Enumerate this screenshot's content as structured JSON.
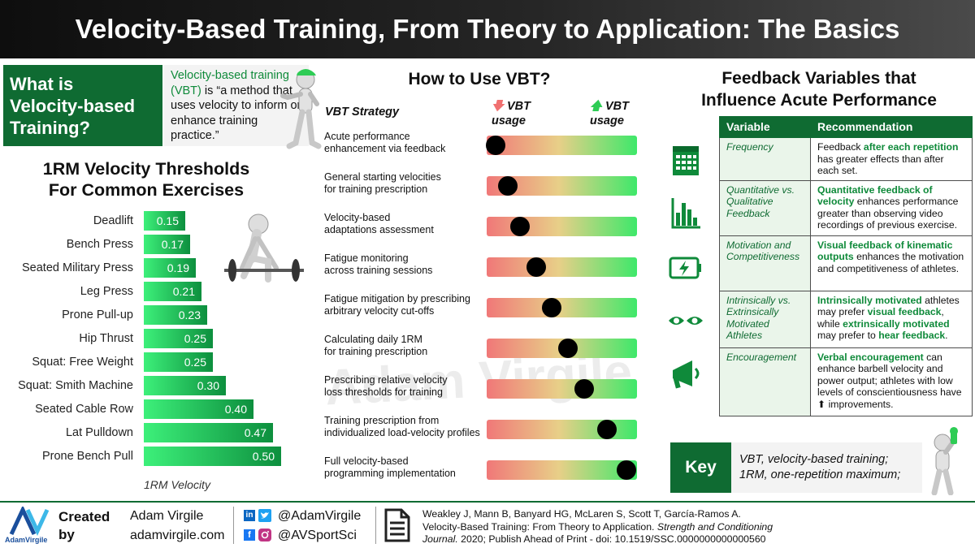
{
  "title": "Velocity-Based Training, From Theory to Application: The Basics",
  "intro": {
    "heading_line1": "What is",
    "heading_line2": "Velocity-based",
    "heading_line3": "Training?",
    "def_green": "Velocity-based training (VBT)",
    "def_rest": " is “a method that uses velocity to inform or enhance training practice.”"
  },
  "thresholds": {
    "title_line1": "1RM Velocity Thresholds",
    "title_line2": "For Common Exercises",
    "axis_label": "1RM Velocity",
    "exercises": [
      {
        "name": "Deadlift",
        "value": "0.15"
      },
      {
        "name": "Bench Press",
        "value": "0.17"
      },
      {
        "name": "Seated Military Press",
        "value": "0.19"
      },
      {
        "name": "Leg Press",
        "value": "0.21"
      },
      {
        "name": "Prone Pull-up",
        "value": "0.23"
      },
      {
        "name": "Hip Thrust",
        "value": "0.25"
      },
      {
        "name": "Squat: Free Weight",
        "value": "0.25"
      },
      {
        "name": "Squat: Smith Machine",
        "value": "0.30"
      },
      {
        "name": "Seated Cable Row",
        "value": "0.40"
      },
      {
        "name": "Lat Pulldown",
        "value": "0.47"
      },
      {
        "name": "Prone Bench Pull",
        "value": "0.50"
      }
    ]
  },
  "how": {
    "title": "How to Use VBT?",
    "col_strategy": "VBT Strategy",
    "col_low": "VBT usage",
    "col_high": "VBT usage",
    "strategies": [
      {
        "l1": "Acute performance",
        "l2": "enhancement via feedback",
        "level": 0.06
      },
      {
        "l1": "General starting velocities",
        "l2": "for training prescription",
        "level": 0.14
      },
      {
        "l1": "Velocity-based",
        "l2": "adaptations assessment",
        "level": 0.22
      },
      {
        "l1": "Fatigue monitoring",
        "l2": "across training sessions",
        "level": 0.33
      },
      {
        "l1": "Fatigue mitigation by prescribing",
        "l2": "arbitrary velocity cut-offs",
        "level": 0.43
      },
      {
        "l1": "Calculating daily 1RM",
        "l2": "for training prescription",
        "level": 0.54
      },
      {
        "l1": "Prescribing relative velocity",
        "l2": "loss thresholds for training",
        "level": 0.65
      },
      {
        "l1": "Training prescription from",
        "l2": "individualized load-velocity profiles",
        "level": 0.8
      },
      {
        "l1": "Full velocity-based",
        "l2": "programming implementation",
        "level": 0.93
      }
    ]
  },
  "watermark": "Adam Virgile",
  "feedback": {
    "title_line1": "Feedback Variables that",
    "title_line2": "Influence Acute Performance",
    "col_variable": "Variable",
    "col_recommendation": "Recommendation",
    "rows": [
      {
        "variable": "Frequency",
        "icon": "calendar-icon",
        "parts": [
          {
            "t": "Feedback ",
            "b": false
          },
          {
            "t": "after each repetition",
            "b": true
          },
          {
            "t": " has greater effects than after each set.",
            "b": false
          }
        ]
      },
      {
        "variable": "Quantitative vs. Qualitative Feedback",
        "icon": "bar-chart-icon",
        "parts": [
          {
            "t": "Quantitative feedback of velocity",
            "b": true
          },
          {
            "t": " enhances performance greater than observing video recordings of previous exercise.",
            "b": false
          }
        ]
      },
      {
        "variable": "Motivation and Competitiveness",
        "icon": "battery-icon",
        "parts": [
          {
            "t": "Visual feedback of kinematic outputs",
            "b": true
          },
          {
            "t": " enhances the motivation and competitiveness of athletes.",
            "b": false
          }
        ]
      },
      {
        "variable": "Intrinsically vs. Extrinsically Motivated Athletes",
        "icon": "eyes-icon",
        "parts": [
          {
            "t": "Intrinsically motivated",
            "b": true
          },
          {
            "t": " athletes may prefer ",
            "b": false
          },
          {
            "t": "visual feedback",
            "b": true
          },
          {
            "t": ", while ",
            "b": false
          },
          {
            "t": "extrinsically motivated",
            "b": true
          },
          {
            "t": " may prefer to ",
            "b": false
          },
          {
            "t": "hear feedback",
            "b": true
          },
          {
            "t": ".",
            "b": false
          }
        ]
      },
      {
        "variable": "Encouragement",
        "icon": "megaphone-icon",
        "parts": [
          {
            "t": "Verbal encouragement",
            "b": true
          },
          {
            "t": " can enhance barbell velocity and power output; athletes with low levels of conscientiousness have ⬆ improvements.",
            "b": false
          }
        ]
      }
    ]
  },
  "key": {
    "label": "Key",
    "line1": "VBT, velocity-based training;",
    "line2": "1RM, one-repetition maximum;"
  },
  "footer": {
    "logo_text": "AdamVirgile",
    "created": "Created",
    "by": "by",
    "author": "Adam Virgile",
    "website": "adamvirgile.com",
    "handle1": "@AdamVirgile",
    "handle2": "@AVSportSci",
    "ref_line1": "Weakley J, Mann B, Banyard HG, McLaren S, Scott T, García-Ramos A.",
    "ref_line2_a": "Velocity-Based Training: From Theory to Application. ",
    "ref_line2_b": "Strength and Conditioning",
    "ref_line3_a": "Journal.",
    "ref_line3_b": " 2020; Publish Ahead of Print - doi: 10.1519/SSC.0000000000000560"
  },
  "colors": {
    "brand_green": "#0f6b32",
    "bright_green": "#3df07a",
    "red": "#f07878"
  }
}
